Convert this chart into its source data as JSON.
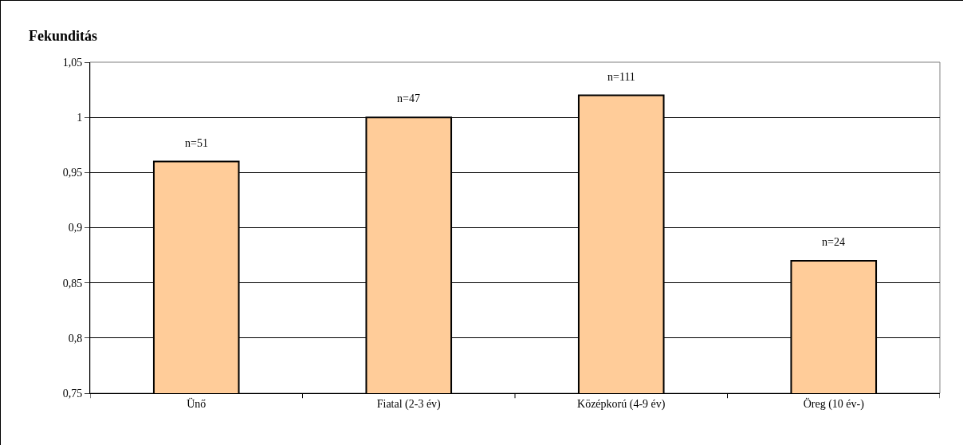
{
  "chart_data": {
    "type": "bar",
    "title": "Fekunditás",
    "categories": [
      "Ünő",
      "Fiatal (2-3 év)",
      "Középkorú (4-9 év)",
      "Öreg (10 év-)"
    ],
    "values": [
      0.96,
      1.0,
      1.02,
      0.87
    ],
    "annotations": [
      {
        "text": "n=51",
        "x": "Ünő",
        "y": 0.96
      },
      {
        "text": "n=47",
        "x": "Fiatal (2-3 év)",
        "y": 1.0
      },
      {
        "text": "n=111",
        "x": "Középkorú (4-9 év)",
        "y": 1.02
      },
      {
        "text": "n=24",
        "x": "Öreg (10 év-)",
        "y": 0.87
      }
    ],
    "color": "#ffcc99",
    "ylim": [
      0.75,
      1.05
    ],
    "yticks": [
      {
        "value": 0.75,
        "label": "0,75"
      },
      {
        "value": 0.8,
        "label": "0,8"
      },
      {
        "value": 0.85,
        "label": "0,85"
      },
      {
        "value": 0.9,
        "label": "0,9"
      },
      {
        "value": 0.95,
        "label": "0,95"
      },
      1,
      {
        "value": 1.05,
        "label": "1,05"
      }
    ],
    "grid": "y",
    "legend": false
  }
}
